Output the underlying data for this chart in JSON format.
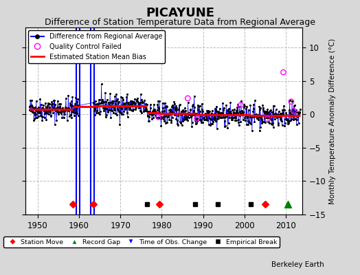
{
  "title": "PICAYUNE",
  "subtitle": "Difference of Station Temperature Data from Regional Average",
  "ylabel": "Monthly Temperature Anomaly Difference (°C)",
  "xlim": [
    1947,
    2014
  ],
  "ylim": [
    -15,
    13
  ],
  "yticks": [
    -15,
    -10,
    -5,
    0,
    5,
    10
  ],
  "xticks": [
    1950,
    1960,
    1970,
    1980,
    1990,
    2000,
    2010
  ],
  "background_color": "#d8d8d8",
  "plot_bg_color": "#ffffff",
  "grid_color": "#bbbbbb",
  "title_fontsize": 13,
  "subtitle_fontsize": 9,
  "station_moves": [
    1958.5,
    1963.5,
    1979.5,
    2005.0
  ],
  "empirical_breaks": [
    1976.5,
    1988.0,
    1993.5,
    2001.5
  ],
  "record_gap_marker": [
    2010.5
  ],
  "blue_vlines": [
    1959.3,
    1960.1,
    1962.8,
    1963.6
  ],
  "bias_segments": [
    {
      "x_start": 1948.0,
      "x_end": 1958.5,
      "value": 0.75
    },
    {
      "x_start": 1958.5,
      "x_end": 1963.5,
      "value": 1.15
    },
    {
      "x_start": 1963.5,
      "x_end": 1976.5,
      "value": 1.25
    },
    {
      "x_start": 1976.5,
      "x_end": 1979.5,
      "value": 0.2
    },
    {
      "x_start": 1979.5,
      "x_end": 1988.0,
      "value": 0.1
    },
    {
      "x_start": 1988.0,
      "x_end": 1993.5,
      "value": -0.05
    },
    {
      "x_start": 1993.5,
      "x_end": 2001.5,
      "value": -0.1
    },
    {
      "x_start": 2001.5,
      "x_end": 2005.0,
      "value": -0.15
    },
    {
      "x_start": 2005.0,
      "x_end": 2013.5,
      "value": -0.2
    }
  ],
  "gap_start": 1960.0,
  "gap_end": 1963.4,
  "qc_failed_times": [
    1979.2,
    1986.3,
    1988.5,
    1999.1,
    2005.6,
    2009.4,
    2011.3,
    2011.9
  ],
  "qc_failed_values": [
    -0.4,
    2.4,
    -0.6,
    1.4,
    -0.7,
    6.3,
    1.9,
    0.5
  ],
  "watermark": "Berkeley Earth"
}
